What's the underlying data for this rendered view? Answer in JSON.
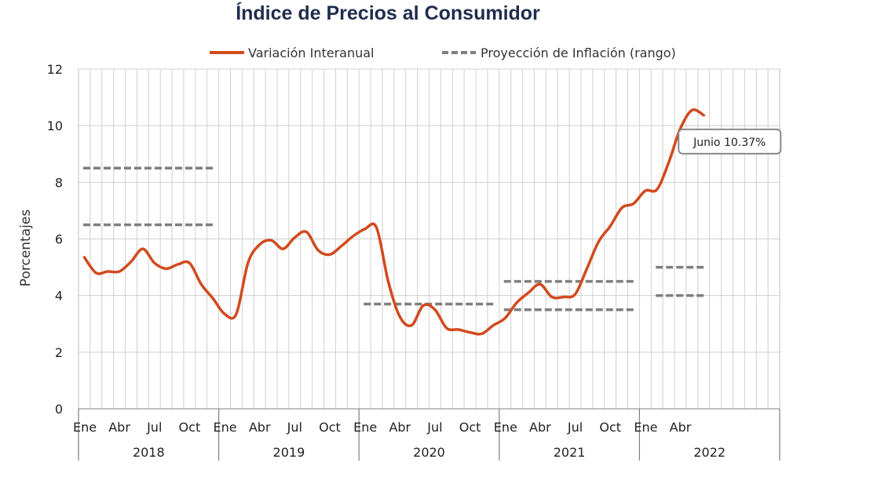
{
  "chart_data": {
    "type": "line",
    "title": "Índice de Precios al Consumidor",
    "ylabel": "Porcentajes",
    "xlabel": "",
    "ylim": [
      0,
      12
    ],
    "yticks": [
      "0",
      "2",
      "4",
      "6",
      "8",
      "10",
      "12"
    ],
    "grid": true,
    "legend_placement": "top",
    "x_month_labels": [
      "Ene",
      "Abr",
      "Jul",
      "Oct"
    ],
    "years": [
      "2018",
      "2019",
      "2020",
      "2021",
      "2022"
    ],
    "series": [
      {
        "name": "Variación Interanual",
        "color": "#d24a1e",
        "style": "solid",
        "start": "2018-01",
        "values": [
          5.35,
          4.8,
          4.85,
          4.85,
          5.2,
          5.65,
          5.15,
          4.95,
          5.1,
          5.15,
          4.4,
          3.9,
          3.35,
          3.35,
          5.15,
          5.8,
          5.95,
          5.65,
          6.05,
          6.25,
          5.6,
          5.45,
          5.75,
          6.1,
          6.35,
          6.4,
          4.5,
          3.25,
          2.95,
          3.65,
          3.5,
          2.85,
          2.8,
          2.7,
          2.65,
          2.95,
          3.2,
          3.75,
          4.1,
          4.4,
          3.95,
          3.95,
          4.05,
          4.95,
          5.9,
          6.45,
          7.1,
          7.25,
          7.7,
          7.75,
          8.7,
          9.9,
          10.55,
          10.37
        ]
      },
      {
        "name": "Proyección de Inflación (rango)",
        "color": "#7f7f7f",
        "style": "dashed",
        "segments": [
          {
            "from": "2018-01",
            "to": "2018-12",
            "value": 8.5
          },
          {
            "from": "2018-01",
            "to": "2018-12",
            "value": 6.5
          },
          {
            "from": "2020-01",
            "to": "2020-12",
            "value": 3.7
          },
          {
            "from": "2021-01",
            "to": "2021-12",
            "value": 4.5
          },
          {
            "from": "2021-01",
            "to": "2021-12",
            "value": 3.5
          },
          {
            "from": "2022-02",
            "to": "2022-06",
            "value": 5.0
          },
          {
            "from": "2022-02",
            "to": "2022-06",
            "value": 4.0
          }
        ]
      }
    ],
    "annotations": [
      {
        "text": "Junio 10.37%",
        "x": "2022-06",
        "y": 10.37
      }
    ]
  }
}
